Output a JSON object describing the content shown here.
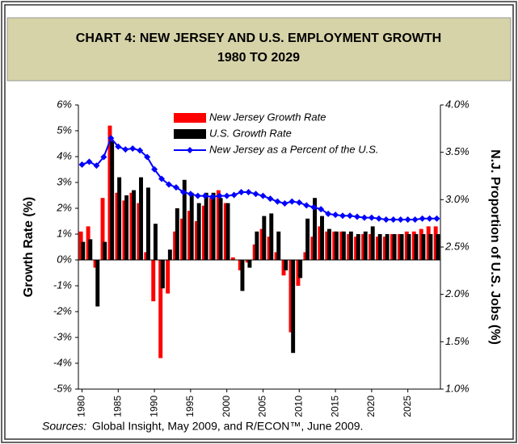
{
  "chart_data": {
    "type": "bar_line",
    "title_lines": [
      "CHART 4: NEW JERSEY AND U.S. EMPLOYMENT GROWTH",
      "1980 TO 2029"
    ],
    "ylabel": "Growth Rate (%)",
    "y2label": "N.J. Proportion of U.S. Jobs (%)",
    "sources_label": "Sources:",
    "sources": "Global Insight, May 2009, and R/ECON™, June 2009.",
    "legend": "top",
    "x": [
      1980,
      1981,
      1982,
      1983,
      1984,
      1985,
      1986,
      1987,
      1988,
      1989,
      1990,
      1991,
      1992,
      1993,
      1994,
      1995,
      1996,
      1997,
      1998,
      1999,
      2000,
      2001,
      2002,
      2003,
      2004,
      2005,
      2006,
      2007,
      2008,
      2009,
      2010,
      2011,
      2012,
      2013,
      2014,
      2015,
      2016,
      2017,
      2018,
      2019,
      2020,
      2021,
      2022,
      2023,
      2024,
      2025,
      2026,
      2027,
      2028,
      2029
    ],
    "xlim": [
      1979.5,
      2029.5
    ],
    "xticks": [
      1980,
      1985,
      1990,
      1995,
      2000,
      2005,
      2010,
      2015,
      2020,
      2025
    ],
    "ylim": [
      -5,
      6
    ],
    "yticks": [
      {
        "value": -5,
        "label": "-5%"
      },
      {
        "value": -4,
        "label": "-4%"
      },
      {
        "value": -3,
        "label": "-3%"
      },
      {
        "value": -2,
        "label": "-2%"
      },
      {
        "value": -1,
        "label": "-1%"
      },
      {
        "value": 0,
        "label": "0%"
      },
      {
        "value": 1,
        "label": "1%"
      },
      {
        "value": 2,
        "label": "2%"
      },
      {
        "value": 3,
        "label": "3%"
      },
      {
        "value": 4,
        "label": "4%"
      },
      {
        "value": 5,
        "label": "5%"
      },
      {
        "value": 6,
        "label": "6%"
      }
    ],
    "y2lim": [
      1.0,
      4.0
    ],
    "y2ticks": [
      {
        "value": 1.0,
        "label": "1.0%"
      },
      {
        "value": 1.5,
        "label": "1.5%"
      },
      {
        "value": 2.0,
        "label": "2.0%"
      },
      {
        "value": 2.5,
        "label": "2.5%"
      },
      {
        "value": 3.0,
        "label": "3.0%"
      },
      {
        "value": 3.5,
        "label": "3.5%"
      },
      {
        "value": 4.0,
        "label": "4.0%"
      }
    ],
    "series": [
      {
        "name": "New Jersey Growth Rate",
        "kind": "bar",
        "color": "#ff0000",
        "values": [
          1.1,
          1.3,
          -0.3,
          2.4,
          5.2,
          2.6,
          2.3,
          2.6,
          2.2,
          0.3,
          -1.6,
          -3.8,
          -1.3,
          1.1,
          1.6,
          1.9,
          1.5,
          2.1,
          2.4,
          2.7,
          2.2,
          0.1,
          -0.4,
          -0.1,
          0.6,
          1.2,
          0.9,
          0.3,
          -0.6,
          -2.8,
          -1.0,
          0.3,
          0.9,
          1.3,
          1.1,
          1.1,
          1.1,
          1.0,
          0.9,
          1.0,
          1.0,
          0.9,
          0.9,
          1.0,
          1.0,
          1.1,
          1.1,
          1.2,
          1.3,
          1.3
        ]
      },
      {
        "name": "U.S. Growth Rate",
        "kind": "bar",
        "color": "#000000",
        "values": [
          0.7,
          0.8,
          -1.8,
          0.7,
          4.6,
          3.2,
          2.5,
          2.7,
          3.2,
          2.8,
          1.4,
          -1.1,
          0.4,
          2.0,
          3.1,
          2.6,
          2.2,
          2.6,
          2.6,
          2.4,
          2.2,
          0.0,
          -1.2,
          -0.3,
          1.1,
          1.7,
          1.8,
          1.1,
          -0.4,
          -3.6,
          -0.7,
          1.6,
          2.4,
          1.7,
          1.2,
          1.1,
          1.1,
          1.1,
          1.0,
          1.1,
          1.3,
          1.0,
          1.0,
          1.0,
          1.0,
          1.0,
          1.0,
          1.0,
          1.0,
          1.0
        ]
      },
      {
        "name": "New Jersey as a Percent of the U.S.",
        "kind": "line",
        "axis": "y2",
        "color": "#0000ff",
        "values": [
          3.37,
          3.4,
          3.36,
          3.45,
          3.65,
          3.56,
          3.53,
          3.54,
          3.52,
          3.45,
          3.32,
          3.22,
          3.16,
          3.13,
          3.08,
          3.06,
          3.04,
          3.04,
          3.03,
          3.04,
          3.04,
          3.05,
          3.08,
          3.08,
          3.06,
          3.04,
          3.01,
          2.98,
          2.96,
          2.98,
          2.97,
          2.94,
          2.92,
          2.9,
          2.85,
          2.84,
          2.83,
          2.83,
          2.82,
          2.81,
          2.81,
          2.8,
          2.79,
          2.79,
          2.79,
          2.79,
          2.79,
          2.8,
          2.8,
          2.8
        ]
      }
    ]
  }
}
